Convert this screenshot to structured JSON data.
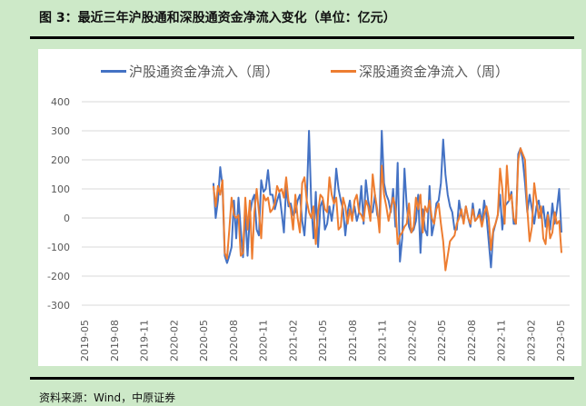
{
  "title": "图 3：最近三年沪股通和深股通资金净流入变化（单位：亿元）",
  "footer": "资料来源：Wind，中原证券",
  "chart_data": {
    "type": "line",
    "title": "",
    "xlabel": "",
    "ylabel": "",
    "ylim": [
      -300,
      400
    ],
    "yticks": [
      "400",
      "300",
      "200",
      "100",
      "0",
      "-100",
      "-200",
      "-300"
    ],
    "ytick_values": [
      400,
      300,
      200,
      100,
      0,
      -100,
      -200,
      -300
    ],
    "xticks": [
      "2019-05",
      "2019-08",
      "2019-11",
      "2020-02",
      "2020-05",
      "2020-08",
      "2020-11",
      "2021-02",
      "2021-05",
      "2021-08",
      "2021-11",
      "2022-02",
      "2022-05",
      "2022-08",
      "2022-11",
      "2023-02",
      "2023-05"
    ],
    "x_range_months": [
      "2019-05",
      "2023-05"
    ],
    "series_start": "2020-06",
    "series_end": "2023-05",
    "frequency": "weekly",
    "grid": true,
    "legend_position": "top",
    "series": [
      {
        "name": "沪股通资金净流入（周）",
        "color": "#4472c4",
        "values": [
          120,
          0,
          60,
          175,
          110,
          -130,
          -155,
          -130,
          -100,
          60,
          -70,
          70,
          -40,
          -135,
          20,
          -130,
          10,
          60,
          80,
          -40,
          -60,
          130,
          90,
          100,
          165,
          80,
          80,
          30,
          60,
          85,
          20,
          -50,
          110,
          40,
          50,
          10,
          20,
          60,
          80,
          -10,
          -60,
          60,
          300,
          50,
          -70,
          90,
          -100,
          40,
          60,
          -40,
          -20,
          40,
          -10,
          50,
          170,
          100,
          60,
          30,
          -60,
          20,
          60,
          0,
          40,
          -10,
          20,
          110,
          -20,
          130,
          60,
          20,
          20,
          80,
          10,
          -10,
          300,
          120,
          80,
          60,
          20,
          100,
          -30,
          190,
          -150,
          -70,
          170,
          40,
          -30,
          -50,
          -40,
          -10,
          80,
          -120,
          30,
          -40,
          -60,
          110,
          -60,
          -20,
          50,
          60,
          120,
          270,
          150,
          80,
          40,
          20,
          -40,
          -40,
          60,
          10,
          -10,
          40,
          0,
          -30,
          50,
          -10,
          0,
          30,
          -20,
          60,
          10,
          -80,
          -170,
          -50,
          -20,
          10,
          80,
          -40,
          40,
          50,
          60,
          90,
          -20,
          -20,
          220,
          240,
          200,
          120,
          20,
          80,
          30,
          -20,
          40,
          60,
          0,
          40,
          -30,
          20,
          -40,
          50,
          -20,
          30,
          100,
          -50
        ]
      },
      {
        "name": "深股通资金净流入（周）",
        "color": "#ed7d31",
        "values": [
          110,
          40,
          110,
          80,
          130,
          -120,
          -140,
          -40,
          70,
          10,
          0,
          10,
          -130,
          -120,
          70,
          -40,
          60,
          -140,
          20,
          100,
          20,
          -70,
          80,
          60,
          70,
          20,
          30,
          50,
          110,
          90,
          100,
          70,
          140,
          60,
          30,
          -40,
          80,
          0,
          -50,
          120,
          140,
          60,
          20,
          0,
          40,
          -90,
          20,
          80,
          70,
          30,
          20,
          140,
          80,
          50,
          70,
          -40,
          -30,
          70,
          40,
          -20,
          30,
          -10,
          60,
          80,
          20,
          10,
          -10,
          60,
          40,
          -10,
          150,
          80,
          30,
          -50,
          180,
          80,
          40,
          -10,
          30,
          70,
          40,
          -90,
          -60,
          -50,
          -30,
          -20,
          50,
          -50,
          -30,
          70,
          30,
          80,
          -50,
          40,
          20,
          60,
          0,
          -20,
          30,
          50,
          -20,
          -80,
          -180,
          -130,
          -80,
          -70,
          -60,
          -20,
          0,
          30,
          -20,
          40,
          0,
          -20,
          30,
          -10,
          0,
          10,
          -30,
          10,
          40,
          0,
          -110,
          -40,
          -20,
          10,
          170,
          100,
          -20,
          180,
          60,
          80,
          0,
          -20,
          200,
          240,
          220,
          200,
          30,
          -80,
          -30,
          120,
          60,
          0,
          40,
          -70,
          -90,
          10,
          -70,
          -50,
          20,
          -20,
          -10,
          -120
        ]
      }
    ]
  }
}
